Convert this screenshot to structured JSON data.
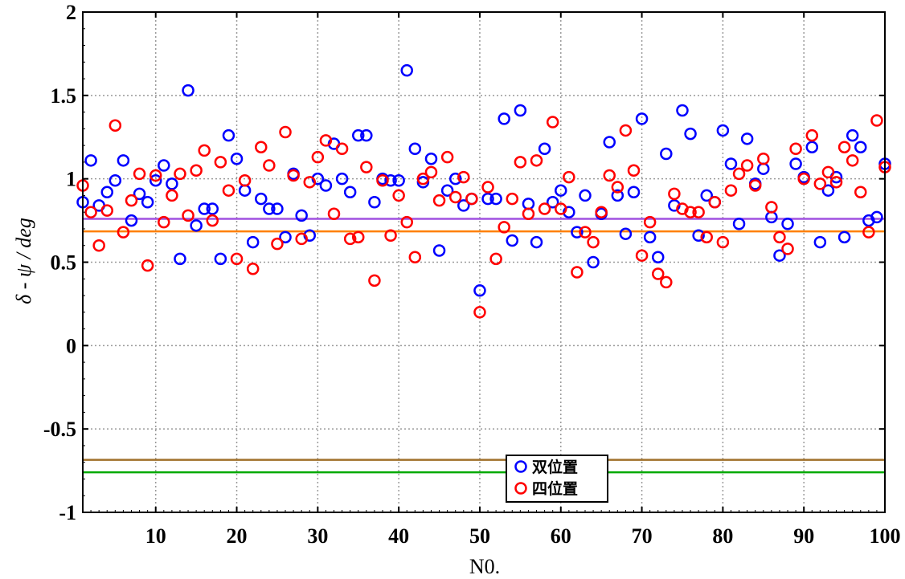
{
  "chart_data": {
    "type": "scatter",
    "title": "",
    "xlabel": "N0.",
    "ylabel": "δ - ψ / deg",
    "xlim": [
      1,
      100
    ],
    "ylim": [
      -1,
      2
    ],
    "x_ticks": [
      10,
      20,
      30,
      40,
      50,
      60,
      70,
      80,
      90,
      100
    ],
    "y_ticks": [
      -1,
      -0.5,
      0,
      0.5,
      1,
      1.5,
      2
    ],
    "y_tick_labels": [
      "-1",
      "-0.5",
      "0",
      "0.5",
      "1",
      "1.5",
      "2"
    ],
    "grid": true,
    "legend_position": "bottom-center",
    "series": [
      {
        "name": "双位置",
        "color": "#0000ff",
        "marker": "circle",
        "values": [
          0.86,
          1.11,
          0.84,
          0.92,
          0.99,
          1.11,
          0.75,
          0.91,
          0.86,
          0.99,
          1.08,
          0.97,
          0.52,
          1.53,
          0.72,
          0.82,
          0.82,
          0.52,
          1.26,
          1.12,
          0.93,
          0.62,
          0.88,
          0.82,
          0.82,
          0.65,
          1.03,
          0.78,
          0.66,
          1.0,
          0.96,
          1.21,
          1.0,
          0.92,
          1.26,
          1.26,
          0.86,
          1.0,
          0.99,
          0.99,
          1.65,
          1.18,
          0.98,
          1.12,
          0.57,
          0.93,
          1.0,
          0.84,
          0.88,
          0.33,
          0.88,
          0.88,
          1.36,
          0.63,
          1.41,
          0.85,
          0.62,
          1.18,
          0.86,
          0.93,
          0.8,
          0.68,
          0.9,
          0.5,
          0.79,
          1.22,
          0.9,
          0.67,
          0.92,
          1.36,
          0.65,
          0.53,
          1.15,
          0.84,
          1.41,
          1.27,
          0.66,
          0.9,
          0.86,
          1.29,
          1.09,
          0.73,
          1.24,
          0.97,
          1.06,
          0.77,
          0.54,
          0.73,
          1.09,
          1.01,
          1.19,
          0.62,
          0.93,
          1.01,
          0.65,
          1.26,
          1.19,
          0.75,
          0.77,
          1.09
        ]
      },
      {
        "name": "四位置",
        "color": "#ff0000",
        "marker": "circle",
        "values": [
          0.96,
          0.8,
          0.6,
          0.81,
          1.32,
          0.68,
          0.87,
          1.03,
          0.48,
          1.02,
          0.74,
          0.9,
          1.03,
          0.78,
          1.05,
          1.17,
          0.75,
          1.1,
          0.93,
          0.52,
          0.99,
          0.46,
          1.19,
          1.08,
          0.61,
          1.28,
          1.02,
          0.64,
          0.98,
          1.13,
          1.23,
          0.79,
          1.18,
          0.64,
          0.65,
          1.07,
          0.39,
          0.99,
          0.66,
          0.9,
          0.74,
          0.53,
          1.0,
          1.04,
          0.87,
          1.13,
          0.89,
          1.01,
          0.88,
          0.2,
          0.95,
          0.52,
          0.71,
          0.88,
          1.1,
          0.79,
          1.11,
          0.82,
          1.34,
          0.82,
          1.01,
          0.44,
          0.68,
          0.62,
          0.8,
          1.02,
          0.95,
          1.29,
          1.05,
          0.54,
          0.74,
          0.43,
          0.38,
          0.91,
          0.82,
          0.8,
          0.8,
          0.65,
          0.86,
          0.62,
          0.93,
          1.03,
          1.08,
          0.96,
          1.12,
          0.83,
          0.65,
          0.58,
          1.18,
          1.0,
          1.26,
          0.97,
          1.04,
          0.98,
          1.19,
          1.11,
          0.92,
          0.68,
          1.35,
          1.07
        ]
      }
    ],
    "reference_lines": [
      {
        "name": "purple-line",
        "y": 0.76,
        "color": "#a050e0"
      },
      {
        "name": "orange-line",
        "y": 0.685,
        "color": "#ff8000"
      },
      {
        "name": "brown-line",
        "y": -0.685,
        "color": "#a0702a"
      },
      {
        "name": "green-line",
        "y": -0.76,
        "color": "#00aa00"
      }
    ]
  }
}
